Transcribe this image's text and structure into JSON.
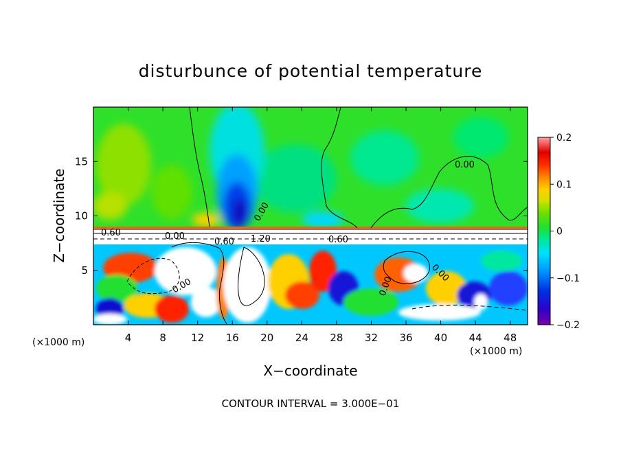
{
  "chart_data": {
    "type": "heatmap",
    "title": "disturbunce of potential temperature",
    "xlabel": "X−coordinate",
    "ylabel": "Z−coordinate",
    "x_unit_left": "(×1000 m)",
    "x_unit_right": "(×1000 m)",
    "xlim": [
      0,
      50
    ],
    "ylim": [
      0,
      20
    ],
    "x_ticks": [
      4,
      8,
      12,
      16,
      20,
      24,
      28,
      32,
      36,
      40,
      44,
      48
    ],
    "y_ticks": [
      5,
      10,
      15
    ],
    "colorbar": {
      "range": [
        -0.2,
        0.2
      ],
      "tick_labels": [
        "0.2",
        "0.1",
        "0",
        "−0.1",
        "−0.2"
      ],
      "tick_values": [
        0.2,
        0.1,
        0,
        -0.1,
        -0.2
      ],
      "colors": [
        "#7a00a8",
        "#4b00c8",
        "#1e1ed8",
        "#0050f0",
        "#0090ff",
        "#00c8ff",
        "#00eee0",
        "#00e8a0",
        "#00e050",
        "#40e000",
        "#90e000",
        "#d8e000",
        "#ffd000",
        "#ffa000",
        "#ff6000",
        "#ff2000",
        "#e80000",
        "#ff5050",
        "#ffa0a0"
      ]
    },
    "contour_labels": [
      "0.60",
      "0.00",
      "0.00",
      "0.60",
      "1.20",
      "0.60",
      "0.00",
      "0.00",
      "0.00",
      "0.00"
    ],
    "footer": "CONTOUR INTERVAL = 3.000E−01"
  }
}
